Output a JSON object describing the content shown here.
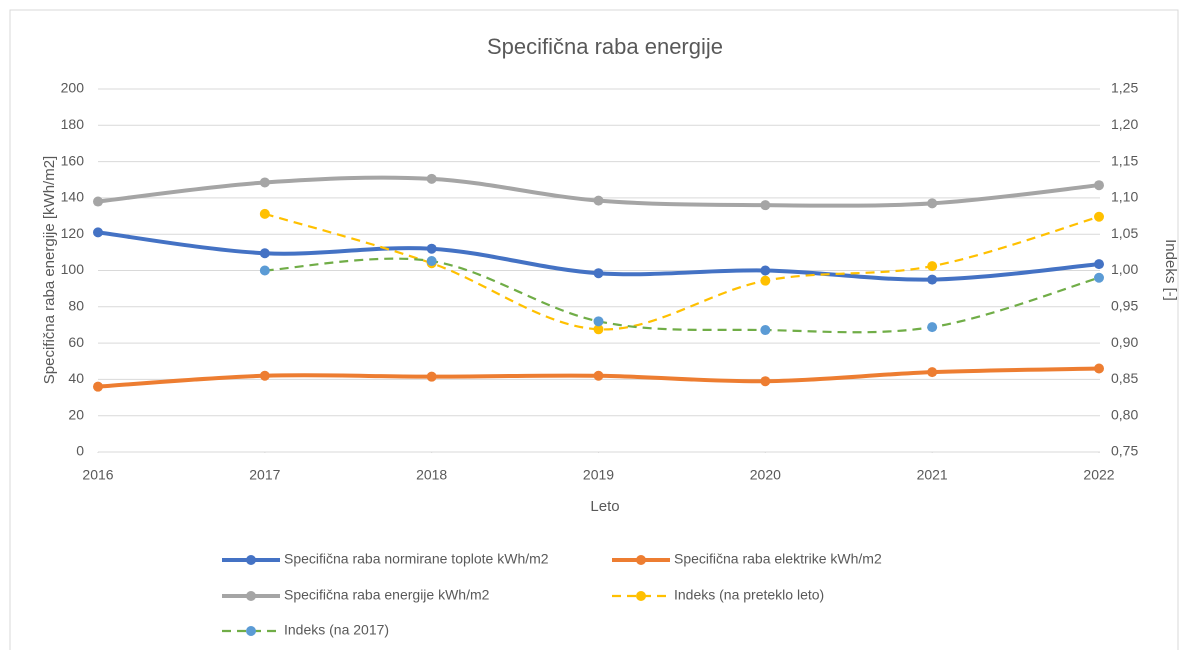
{
  "chart_data": {
    "type": "line",
    "title": "Specifična raba energije",
    "x_label": "Leto",
    "y_label": "Specifična raba energije [kWh/m2]",
    "y2_label": "Indeks [-]",
    "x": [
      2016,
      2017,
      2018,
      2019,
      2020,
      2021,
      2022
    ],
    "xlim": [
      2016,
      2022
    ],
    "xticks": [
      2016,
      2017,
      2018,
      2019,
      2020,
      2021,
      2022
    ],
    "ylim": [
      0,
      200
    ],
    "yticks": [
      0,
      20,
      40,
      60,
      80,
      100,
      120,
      140,
      160,
      180,
      200
    ],
    "y2lim": [
      0.75,
      1.25
    ],
    "y2ticks": [
      {
        "value": 0.75,
        "label": "0,75"
      },
      {
        "value": 0.8,
        "label": "0,80"
      },
      {
        "value": 0.85,
        "label": "0,85"
      },
      {
        "value": 0.9,
        "label": "0,90"
      },
      {
        "value": 0.95,
        "label": "0,95"
      },
      {
        "value": 1.0,
        "label": "1,00"
      },
      {
        "value": 1.05,
        "label": "1,05"
      },
      {
        "value": 1.1,
        "label": "1,10"
      },
      {
        "value": 1.15,
        "label": "1,15"
      },
      {
        "value": 1.2,
        "label": "1,20"
      },
      {
        "value": 1.25,
        "label": "1,25"
      }
    ],
    "grid": true,
    "legend": "bottom",
    "series": [
      {
        "name": "Specifična raba normirane toplote kWh/m2",
        "color": "#4472c4",
        "values": [
          121,
          109.5,
          112,
          98.5,
          100,
          95,
          103.5
        ]
      },
      {
        "name": "Specifična raba elektrike kWh/m2",
        "color": "#ed7d31",
        "values": [
          36,
          42,
          41.5,
          42,
          39,
          44,
          46
        ]
      },
      {
        "name": "Specifična raba energije kWh/m2",
        "color": "#a5a5a5",
        "values": [
          138,
          148.5,
          150.5,
          138.5,
          136,
          137,
          147
        ]
      },
      {
        "name": "Indeks (na preteklo leto)",
        "color": "#ffc000",
        "axis": "y2",
        "dashed": true,
        "values": [
          null,
          1.078,
          1.01,
          0.919,
          0.986,
          1.006,
          1.074
        ]
      },
      {
        "name": "Indeks (na 2017)",
        "color": "#70ad47",
        "marker_color": "#5b9bd5",
        "axis": "y2",
        "dashed": true,
        "values": [
          null,
          1.0,
          1.013,
          0.93,
          0.918,
          0.922,
          0.99
        ]
      }
    ]
  }
}
